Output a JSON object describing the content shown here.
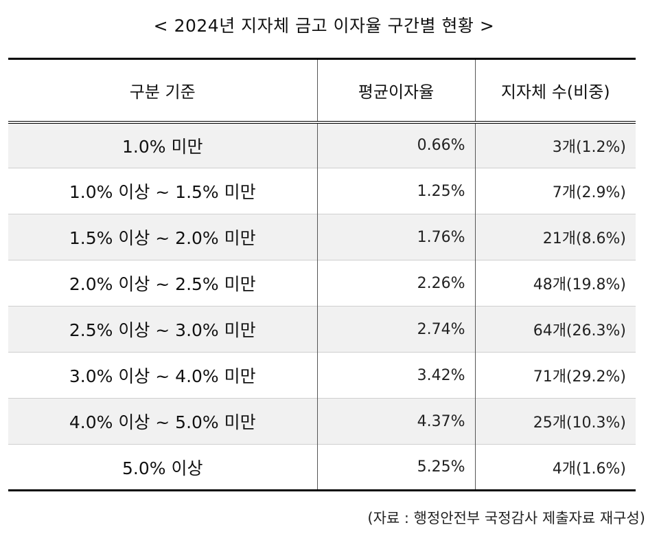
{
  "title": "< 2024년 지자체 금고 이자율 구간별 현황 >",
  "table": {
    "headers": [
      "구분 기준",
      "평균이자율",
      "지자체 수(비중)"
    ],
    "rows": [
      {
        "range": "1.0% 미만",
        "avg_rate": "0.66%",
        "count": "3개(1.2%)"
      },
      {
        "range": "1.0% 이상 ~ 1.5% 미만",
        "avg_rate": "1.25%",
        "count": "7개(2.9%)"
      },
      {
        "range": "1.5% 이상 ~ 2.0% 미만",
        "avg_rate": "1.76%",
        "count": "21개(8.6%)"
      },
      {
        "range": "2.0% 이상 ~ 2.5% 미만",
        "avg_rate": "2.26%",
        "count": "48개(19.8%)"
      },
      {
        "range": "2.5% 이상 ~ 3.0% 미만",
        "avg_rate": "2.74%",
        "count": "64개(26.3%)"
      },
      {
        "range": "3.0% 이상 ~ 4.0% 미만",
        "avg_rate": "3.42%",
        "count": "71개(29.2%)"
      },
      {
        "range": "4.0% 이상 ~ 5.0% 미만",
        "avg_rate": "4.37%",
        "count": "25개(10.3%)"
      },
      {
        "range": "5.0% 이상",
        "avg_rate": "5.25%",
        "count": "4개(1.6%)"
      }
    ]
  },
  "source": "(자료 : 행정안전부 국정감사 제출자료 재구성)"
}
